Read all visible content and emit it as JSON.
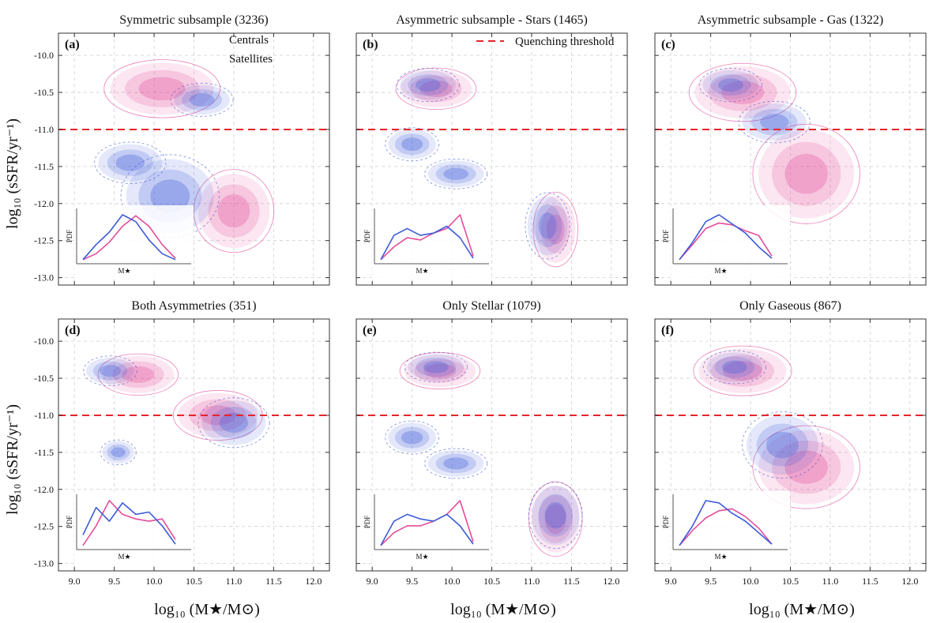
{
  "chart_data": {
    "type": "contour",
    "xlabel": "log₁₀ (M★/M⊙)",
    "ylabel": "log₁₀ (sSFR/yr⁻¹)",
    "xlim": [
      8.8,
      12.2
    ],
    "ylim": [
      -13.1,
      -9.7
    ],
    "xticks": [
      "9.0",
      "9.5",
      "10.0",
      "10.5",
      "11.0",
      "11.5",
      "12.0"
    ],
    "yticks": [
      "-10.0",
      "-10.5",
      "-11.0",
      "-11.5",
      "-12.0",
      "-12.5",
      "-13.0"
    ],
    "grid": true,
    "threshold": {
      "label": "Quenching threshold",
      "value": -11.0,
      "color": "#e8242a"
    },
    "series_legend": [
      {
        "name": "Centrals",
        "color": "#e44c9a"
      },
      {
        "name": "Satellites",
        "color": "#3d5bd9"
      }
    ],
    "inset": {
      "xlabel": "M★",
      "ylabel": "PDF"
    },
    "panels": [
      {
        "label": "(a)",
        "title": "Symmetric subsample (3236)",
        "centrals": [
          {
            "x": 10.1,
            "y": -10.45,
            "sx": 0.65,
            "sy": 0.35
          },
          {
            "x": 11.0,
            "y": -12.1,
            "sx": 0.45,
            "sy": 0.5
          }
        ],
        "satellites": [
          {
            "x": 10.6,
            "y": -10.6,
            "sx": 0.35,
            "sy": 0.2
          },
          {
            "x": 10.2,
            "y": -11.9,
            "sx": 0.55,
            "sy": 0.5
          },
          {
            "x": 9.7,
            "y": -11.45,
            "sx": 0.4,
            "sy": 0.25
          }
        ],
        "inset_centrals": [
          0.02,
          0.15,
          0.4,
          0.75,
          0.98,
          0.75,
          0.35,
          0.05
        ],
        "inset_satellites": [
          0.02,
          0.35,
          0.62,
          1.0,
          0.85,
          0.45,
          0.15,
          0.02
        ]
      },
      {
        "label": "(b)",
        "title": "Asymmetric subsample - Stars (1465)",
        "centrals": [
          {
            "x": 9.8,
            "y": -10.45,
            "sx": 0.45,
            "sy": 0.25
          },
          {
            "x": 11.3,
            "y": -12.35,
            "sx": 0.25,
            "sy": 0.45
          }
        ],
        "satellites": [
          {
            "x": 9.7,
            "y": -10.4,
            "sx": 0.35,
            "sy": 0.2
          },
          {
            "x": 9.5,
            "y": -11.2,
            "sx": 0.3,
            "sy": 0.2
          },
          {
            "x": 10.05,
            "y": -11.6,
            "sx": 0.35,
            "sy": 0.18
          },
          {
            "x": 11.2,
            "y": -12.3,
            "sx": 0.25,
            "sy": 0.4
          }
        ],
        "inset_centrals": [
          0.02,
          0.3,
          0.5,
          0.45,
          0.6,
          0.7,
          1.0,
          0.1
        ],
        "inset_satellites": [
          0.02,
          0.55,
          0.7,
          0.55,
          0.6,
          0.75,
          0.5,
          0.05
        ]
      },
      {
        "label": "(c)",
        "title": "Asymmetric subsample - Gas (1322)",
        "centrals": [
          {
            "x": 9.9,
            "y": -10.5,
            "sx": 0.6,
            "sy": 0.35
          },
          {
            "x": 10.7,
            "y": -11.6,
            "sx": 0.6,
            "sy": 0.6
          }
        ],
        "satellites": [
          {
            "x": 9.75,
            "y": -10.4,
            "sx": 0.35,
            "sy": 0.2
          },
          {
            "x": 10.3,
            "y": -10.9,
            "sx": 0.4,
            "sy": 0.25
          }
        ],
        "inset_centrals": [
          0.02,
          0.35,
          0.7,
          0.82,
          0.78,
          0.65,
          0.55,
          0.1
        ],
        "inset_satellites": [
          0.02,
          0.4,
          0.85,
          1.0,
          0.8,
          0.6,
          0.3,
          0.05
        ]
      },
      {
        "label": "(d)",
        "title": "Both Asymmetries (351)",
        "centrals": [
          {
            "x": 9.8,
            "y": -10.45,
            "sx": 0.45,
            "sy": 0.25
          },
          {
            "x": 10.8,
            "y": -11.0,
            "sx": 0.5,
            "sy": 0.3
          }
        ],
        "satellites": [
          {
            "x": 9.45,
            "y": -10.4,
            "sx": 0.3,
            "sy": 0.18
          },
          {
            "x": 9.55,
            "y": -11.5,
            "sx": 0.2,
            "sy": 0.15
          },
          {
            "x": 11.0,
            "y": -11.1,
            "sx": 0.4,
            "sy": 0.3
          }
        ],
        "inset_centrals": [
          0.02,
          0.45,
          1.0,
          0.7,
          0.6,
          0.55,
          0.6,
          0.15
        ],
        "inset_satellites": [
          0.25,
          0.85,
          0.55,
          0.95,
          0.7,
          0.75,
          0.45,
          0.05
        ]
      },
      {
        "label": "(e)",
        "title": "Only Stellar (1079)",
        "centrals": [
          {
            "x": 9.85,
            "y": -10.4,
            "sx": 0.45,
            "sy": 0.22
          },
          {
            "x": 11.3,
            "y": -12.4,
            "sx": 0.3,
            "sy": 0.45
          }
        ],
        "satellites": [
          {
            "x": 9.8,
            "y": -10.35,
            "sx": 0.35,
            "sy": 0.18
          },
          {
            "x": 9.5,
            "y": -11.3,
            "sx": 0.3,
            "sy": 0.2
          },
          {
            "x": 10.05,
            "y": -11.65,
            "sx": 0.35,
            "sy": 0.18
          },
          {
            "x": 11.3,
            "y": -12.35,
            "sx": 0.3,
            "sy": 0.4
          }
        ],
        "inset_centrals": [
          0.02,
          0.3,
          0.45,
          0.45,
          0.55,
          0.7,
          1.0,
          0.1
        ],
        "inset_satellites": [
          0.02,
          0.55,
          0.7,
          0.6,
          0.55,
          0.7,
          0.45,
          0.05
        ]
      },
      {
        "label": "(f)",
        "title": "Only Gaseous (867)",
        "centrals": [
          {
            "x": 9.9,
            "y": -10.4,
            "sx": 0.55,
            "sy": 0.3
          },
          {
            "x": 10.7,
            "y": -11.7,
            "sx": 0.6,
            "sy": 0.5
          }
        ],
        "satellites": [
          {
            "x": 9.8,
            "y": -10.35,
            "sx": 0.35,
            "sy": 0.2
          },
          {
            "x": 10.4,
            "y": -11.4,
            "sx": 0.45,
            "sy": 0.4
          }
        ],
        "inset_centrals": [
          0.02,
          0.35,
          0.62,
          0.78,
          0.82,
          0.65,
          0.4,
          0.05
        ],
        "inset_satellites": [
          0.02,
          0.45,
          1.0,
          0.95,
          0.72,
          0.55,
          0.3,
          0.05
        ]
      }
    ]
  }
}
